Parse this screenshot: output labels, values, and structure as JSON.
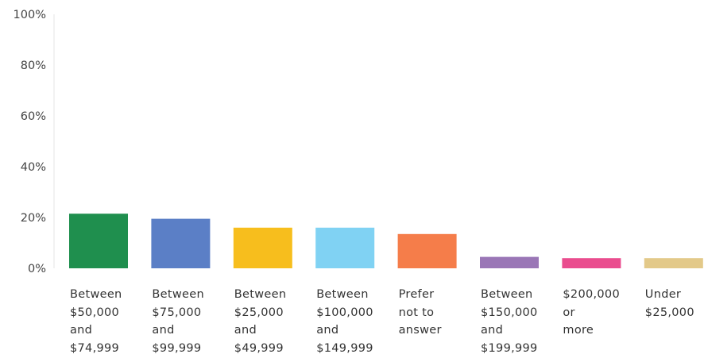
{
  "chart_data": {
    "type": "bar",
    "categories": [
      [
        "Between",
        "$50,000",
        "and",
        "$74,999"
      ],
      [
        "Between",
        "$75,000",
        "and",
        "$99,999"
      ],
      [
        "Between",
        "$25,000",
        "and",
        "$49,999"
      ],
      [
        "Between",
        "$100,000",
        "and",
        "$149,999"
      ],
      [
        "Prefer",
        "not to",
        "answer"
      ],
      [
        "Between",
        "$150,000",
        "and",
        "$199,999"
      ],
      [
        "$200,000",
        "or",
        "more"
      ],
      [
        "Under",
        "$25,000"
      ]
    ],
    "values": [
      21.5,
      19.5,
      16,
      16,
      13.5,
      4.5,
      4,
      4
    ],
    "colors": [
      "#1f8f4e",
      "#5b7fc6",
      "#f7be1d",
      "#80d2f3",
      "#f57d4a",
      "#9a76b6",
      "#ea4c8e",
      "#e3c989"
    ],
    "ylim": [
      0,
      100
    ],
    "yticks": [
      "0%",
      "20%",
      "40%",
      "60%",
      "80%",
      "100%"
    ],
    "ytick_values": [
      0,
      20,
      40,
      60,
      80,
      100
    ],
    "grid": false,
    "legend": "none"
  }
}
